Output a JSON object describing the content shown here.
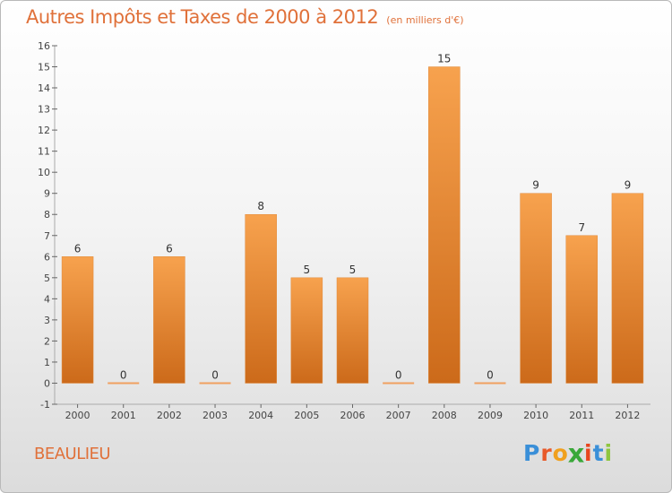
{
  "chart_data": {
    "type": "bar",
    "title": "Autres Impôts et Taxes de 2000 à 2012",
    "subtitle": "(en milliers d'€)",
    "xlabel": "",
    "ylabel": "",
    "categories": [
      "2000",
      "2001",
      "2002",
      "2003",
      "2004",
      "2005",
      "2006",
      "2007",
      "2008",
      "2009",
      "2010",
      "2011",
      "2012"
    ],
    "values": [
      6,
      0,
      6,
      0,
      8,
      5,
      5,
      0,
      15,
      0,
      9,
      7,
      9
    ],
    "data_labels": [
      "6",
      "0",
      "6",
      "0",
      "8",
      "5",
      "5",
      "0",
      "15",
      "0",
      "9",
      "7",
      "9"
    ],
    "ylim": [
      -1,
      16
    ],
    "yticks": [
      -1,
      0,
      1,
      2,
      3,
      4,
      5,
      6,
      7,
      8,
      9,
      10,
      11,
      12,
      13,
      14,
      15,
      16
    ],
    "grid": false,
    "legend": "none",
    "bar_color": "#f0913a"
  },
  "footer": {
    "city": "BEAULIEU",
    "logo_letters": [
      "P",
      "r",
      "o",
      "x",
      "i",
      "t",
      "i"
    ],
    "logo_colors": [
      "#3a8fd8",
      "#e85a2a",
      "#f0a01e",
      "#3aa83a",
      "#e8451e",
      "#3a8fd8",
      "#8ec63f"
    ]
  }
}
